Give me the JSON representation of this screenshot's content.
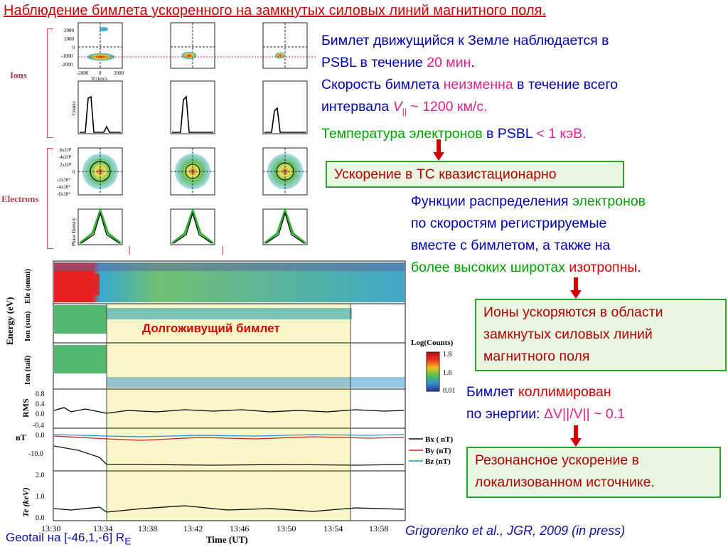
{
  "slide": {
    "title": "Наблюдение бимлета ускоренного на замкнутых силовых линий магнитного поля.",
    "block1": {
      "line1": "Бимлет движущийся к Земле наблюдается в",
      "line2_a": "PSBL в течение ",
      "line2_b": "20 мин",
      "line2_c": ".",
      "line3_a": "Скорость бимлета ",
      "line3_b": "неизменна",
      "line3_c": " в течение всего",
      "line4_a": "интервала ",
      "line4_v": "V",
      "line4_sub": "||",
      "line4_c": " ~ 1200 км/с.",
      "line5_a": "Температура электронов",
      "line5_b": " в PSBL ",
      "line5_c": "< 1 кэВ."
    },
    "box1": "Ускорение в ТС квазистационарно",
    "block2": {
      "line1_a": "Функции распределения ",
      "line1_b": "электронов",
      "line2": "по скоростям регистрируемые",
      "line3": "вместе с бимлетом, а также на",
      "line4_a": "более высоких широтах",
      "line4_b": " изотропны."
    },
    "box2": {
      "line1": "Ионы ускоряются в области",
      "line2": "замкнутых силовых линий",
      "line3": "магнитного поля"
    },
    "block3": {
      "line1_a": "Бимлет ",
      "line1_b": "коллимирован",
      "line2_a": "по энергии: ",
      "line2_b": "ΔV||/V|| ~ 0.1"
    },
    "box3": {
      "line1": "Резонансное ускорение в",
      "line2": "локализованном источнике."
    },
    "credit": "Grigorenko et al., JGR, 2009 (in press)",
    "geotail": "Geotail на [-46,1,-6] R",
    "geotail_sub": "E"
  },
  "figure": {
    "group_ions": "Ions",
    "group_electrons": "Electrons",
    "longlived_label": "Долгоживущий бимлет",
    "legend_title": "Log(Counts)",
    "legend_ticks": [
      "1.8",
      "1.6",
      "0.01"
    ],
    "energy_axis": "Energy (eV)",
    "panel_labels": [
      "Ele (omni)",
      "Ion (sun)",
      "Ion (tail)",
      "RMS",
      "nT",
      "Te (keV)"
    ],
    "b_legend": [
      {
        "label": "Bx ( nT)",
        "color": "#111111"
      },
      {
        "label": "By (nT)",
        "color": "#d02020"
      },
      {
        "label": "Bz (nT)",
        "color": "#2090e0"
      }
    ],
    "time_ticks": [
      "13:30",
      "13:34",
      "13:38",
      "13:42",
      "13:46",
      "13:50",
      "13:54",
      "13:58"
    ],
    "time_axis": "Time (UT)",
    "rms_ticks": [
      "0.8",
      "0.4",
      "0.0",
      "-0.4"
    ],
    "nt_ticks": [
      "0.0",
      "-10.0"
    ],
    "te_ticks": [
      "2.0",
      "1.0",
      "0.0"
    ],
    "small_axis": {
      "vpar": "V|| km/s",
      "vperp_ticks": [
        "2000",
        "1000",
        "0",
        "-1000",
        "-2000"
      ],
      "vpar_ticks": [
        "-2000",
        "0",
        "2000"
      ],
      "counts": "Counts",
      "phase": "Phase Density",
      "e_ticks": [
        "6x10⁴",
        "4x10⁴",
        "2x10⁴",
        "0",
        "-2x10⁴",
        "-4x10⁴",
        "-6x10⁴"
      ]
    }
  },
  "colors": {
    "accent_red": "#d00000",
    "magenta": "#e0208a",
    "green": "#00a000",
    "blue_text": "#0000b0",
    "box_border": "#2aa12a",
    "box_bg": "#e9f6e2"
  }
}
